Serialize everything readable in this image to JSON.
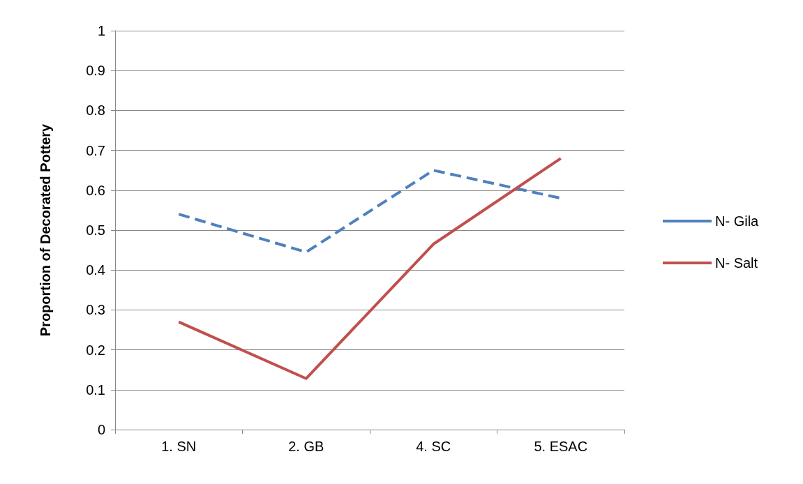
{
  "chart_data": {
    "type": "line",
    "ylabel": "Proportion of Decorated Pottery",
    "categories": [
      "1. SN",
      "2. GB",
      "4. SC",
      "5. ESAC"
    ],
    "series": [
      {
        "name": "N- Gila",
        "color": "#4f81bd",
        "line_style": "dashed",
        "values": [
          0.54,
          0.445,
          0.65,
          0.58
        ]
      },
      {
        "name": "N- Salt",
        "color": "#c0504d",
        "line_style": "solid",
        "values": [
          0.27,
          0.128,
          0.465,
          0.68
        ]
      }
    ],
    "ylim": [
      0,
      1
    ],
    "yticks": [
      0,
      0.1,
      0.2,
      0.3,
      0.4,
      0.5,
      0.6,
      0.7,
      0.8,
      0.9,
      1
    ],
    "grid": "y",
    "legend": "right",
    "marker": "none"
  }
}
